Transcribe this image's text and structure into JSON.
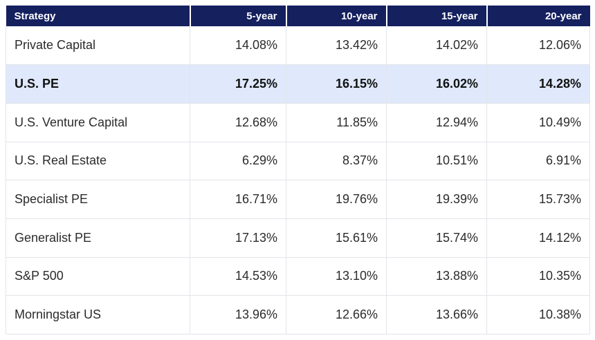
{
  "chart_data": {
    "type": "table",
    "columns": [
      "Strategy",
      "5-year",
      "10-year",
      "15-year",
      "20-year"
    ],
    "highlight_row": "U.S. PE",
    "rows": [
      {
        "strategy": "Private Capital",
        "values": [
          "14.08%",
          "13.42%",
          "14.02%",
          "12.06%"
        ]
      },
      {
        "strategy": "U.S. PE",
        "values": [
          "17.25%",
          "16.15%",
          "16.02%",
          "14.28%"
        ]
      },
      {
        "strategy": "U.S. Venture Capital",
        "values": [
          "12.68%",
          "11.85%",
          "12.94%",
          "10.49%"
        ]
      },
      {
        "strategy": "U.S. Real Estate",
        "values": [
          "6.29%",
          "8.37%",
          "10.51%",
          "6.91%"
        ]
      },
      {
        "strategy": "Specialist PE",
        "values": [
          "16.71%",
          "19.76%",
          "19.39%",
          "15.73%"
        ]
      },
      {
        "strategy": "Generalist PE",
        "values": [
          "17.13%",
          "15.61%",
          "15.74%",
          "14.12%"
        ]
      },
      {
        "strategy": "S&P 500",
        "values": [
          "14.53%",
          "13.10%",
          "13.88%",
          "10.35%"
        ]
      },
      {
        "strategy": "Morningstar US",
        "values": [
          "13.96%",
          "12.66%",
          "13.66%",
          "10.38%"
        ]
      }
    ]
  },
  "colors": {
    "header_bg": "#15205f",
    "header_text": "#ffffff",
    "highlight_bg": "#dfe9fb",
    "grid": "#e2e4ea"
  }
}
